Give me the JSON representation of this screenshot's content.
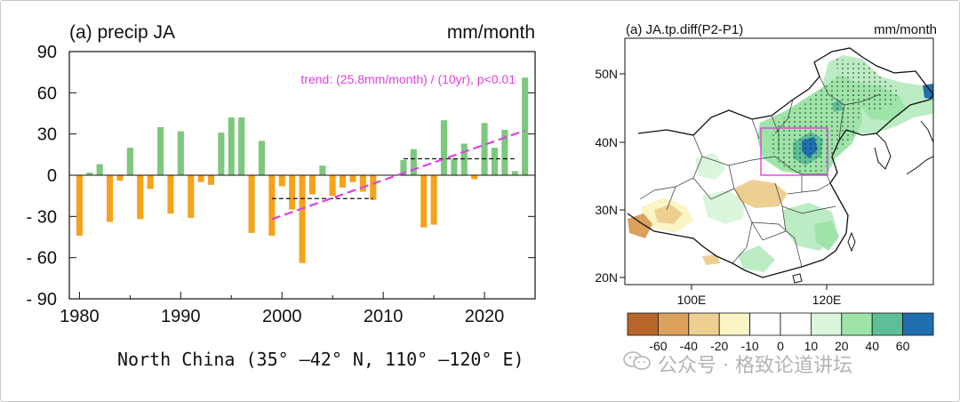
{
  "chart_data": [
    {
      "type": "bar",
      "title": "(a) precip JA",
      "units": "mm/month",
      "trend_text": "trend: (25.8mm/month) / (10yr), p<0.01",
      "xlabel": "",
      "ylabel": "",
      "xlim": [
        1979,
        2025
      ],
      "ylim": [
        -90,
        90
      ],
      "yticks": [
        90,
        60,
        30,
        0,
        -30,
        -60,
        -90
      ],
      "ytick_labels": [
        "90",
        "60",
        "30",
        "0",
        "- 30",
        "- 60",
        "- 90"
      ],
      "xticks": [
        1980,
        1990,
        2000,
        2010,
        2020
      ],
      "xtick_labels": [
        "1980",
        "1990",
        "2000",
        "2010",
        "2020"
      ],
      "positive_color": "#7cc87c",
      "negative_color": "#f5a31c",
      "trend_color": "#e040e0",
      "years": [
        1980,
        1981,
        1982,
        1983,
        1984,
        1985,
        1986,
        1987,
        1988,
        1989,
        1990,
        1991,
        1992,
        1993,
        1994,
        1995,
        1996,
        1997,
        1998,
        1999,
        2000,
        2001,
        2002,
        2003,
        2004,
        2005,
        2006,
        2007,
        2008,
        2009,
        2010,
        2011,
        2012,
        2013,
        2014,
        2015,
        2016,
        2017,
        2018,
        2019,
        2020,
        2021,
        2022,
        2023,
        2024
      ],
      "values": [
        -44,
        2,
        8,
        -34,
        -4,
        20,
        -32,
        -10,
        35,
        -28,
        32,
        -31,
        -5,
        -7,
        31,
        42,
        42,
        -42,
        25,
        -44,
        -8,
        -25,
        -64,
        -14,
        7,
        -15,
        -9,
        -5,
        -12,
        -18,
        0,
        0,
        11,
        19,
        -38,
        -36,
        40,
        12,
        23,
        -3,
        38,
        20,
        33,
        3,
        71
      ],
      "trend_line": {
        "x": [
          1999,
          2024
        ],
        "y": [
          -32,
          32.5
        ]
      },
      "period_means": [
        {
          "x": [
            1999,
            2009
          ],
          "y": -17
        },
        {
          "x": [
            2012,
            2023
          ],
          "y": 12
        }
      ],
      "region_label": "North China (35° —42° N, 110° —120° E)"
    },
    {
      "type": "heatmap",
      "title": "(a) JA.tp.diff(P2-P1)",
      "units": "mm/month",
      "ylabels": [
        "50N",
        "40N",
        "30N",
        "20N"
      ],
      "xlabels": [
        "100E",
        "120E"
      ],
      "box_color": "#e040e0",
      "colorbar": {
        "colors": [
          "#b8652a",
          "#dba05c",
          "#eecf92",
          "#fbf4c4",
          "#ffffff",
          "#ffffff",
          "#daf6dc",
          "#9ee4a8",
          "#5cbf97",
          "#1f6fb0"
        ],
        "labels": [
          "-60",
          "-40",
          "-20",
          "-10",
          "0",
          "10",
          "20",
          "40",
          "60"
        ]
      }
    }
  ],
  "watermark": "公众号 · 格致论道讲坛"
}
